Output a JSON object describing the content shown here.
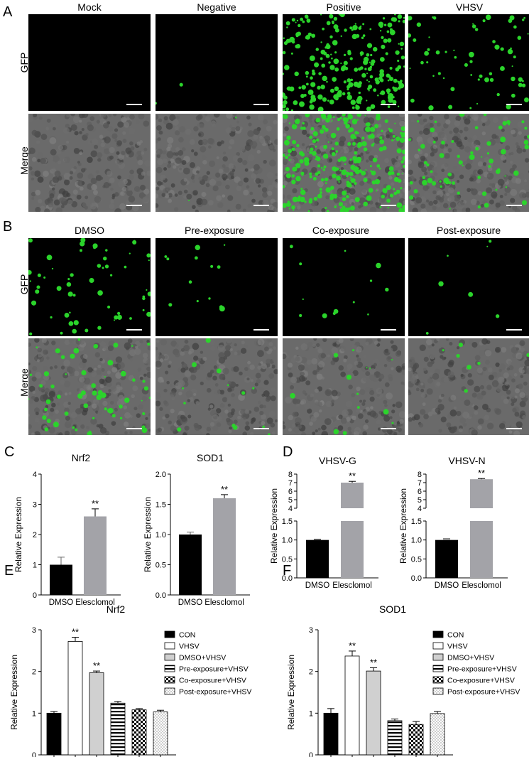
{
  "panels": {
    "A": {
      "label": "A",
      "columns": [
        "Mock",
        "Negative",
        "Positive",
        "VHSV"
      ],
      "rows": [
        "GFP",
        "Merge"
      ],
      "gfp_density": [
        0,
        0.01,
        1.0,
        0.25
      ]
    },
    "B": {
      "label": "B",
      "columns": [
        "DMSO",
        "Pre-exposure",
        "Co-exposure",
        "Post-exposure"
      ],
      "rows": [
        "GFP",
        "Merge"
      ],
      "gfp_density": [
        0.22,
        0.05,
        0.05,
        0.03
      ]
    },
    "C": {
      "label": "C"
    },
    "D": {
      "label": "D"
    },
    "E": {
      "label": "E"
    },
    "F": {
      "label": "F"
    }
  },
  "chart_data": [
    {
      "id": "C1",
      "type": "bar",
      "title": "Nrf2",
      "categories": [
        "DMSO",
        "Elesclomol"
      ],
      "values": [
        1.0,
        2.6
      ],
      "errors": [
        0.25,
        0.25
      ],
      "colors": [
        "#000000",
        "#a3a3a8"
      ],
      "significance": [
        "",
        "**"
      ],
      "ylabel": "Relative Expression",
      "ylim": [
        0,
        4
      ],
      "yticks": [
        "0",
        "1",
        "2",
        "3",
        "4"
      ]
    },
    {
      "id": "C2",
      "type": "bar",
      "title": "SOD1",
      "categories": [
        "DMSO",
        "Elesclomol"
      ],
      "values": [
        1.0,
        1.6
      ],
      "errors": [
        0.04,
        0.06
      ],
      "colors": [
        "#000000",
        "#a3a3a8"
      ],
      "significance": [
        "",
        "**"
      ],
      "ylabel": "Relative Expression",
      "ylim": [
        0,
        2
      ],
      "yticks": [
        "0.0",
        "0.5",
        "1.0",
        "1.5",
        "2.0"
      ]
    },
    {
      "id": "D1",
      "type": "bar",
      "title": "VHSV-G",
      "categories": [
        "DMSO",
        "Elesclomol"
      ],
      "values": [
        1.0,
        7.0
      ],
      "errors": [
        0.02,
        0.15
      ],
      "colors": [
        "#000000",
        "#a3a3a8"
      ],
      "significance": [
        "",
        "**"
      ],
      "ylabel": "Relative Expression",
      "axis_break": true,
      "lower_ylim": [
        0,
        1.5
      ],
      "lower_yticks": [
        "0.0",
        "0.5",
        "1.0",
        "1.5"
      ],
      "upper_ylim": [
        4,
        8
      ],
      "upper_yticks": [
        "4",
        "5",
        "6",
        "7",
        "8"
      ]
    },
    {
      "id": "D2",
      "type": "bar",
      "title": "VHSV-N",
      "categories": [
        "DMSO",
        "Elesclomol"
      ],
      "values": [
        1.0,
        7.4
      ],
      "errors": [
        0.03,
        0.08
      ],
      "colors": [
        "#000000",
        "#a3a3a8"
      ],
      "significance": [
        "",
        "**"
      ],
      "ylabel": "Relative Expression",
      "axis_break": true,
      "lower_ylim": [
        0,
        1.5
      ],
      "lower_yticks": [
        "0.0",
        "0.5",
        "1.0",
        "1.5"
      ],
      "upper_ylim": [
        4,
        8
      ],
      "upper_yticks": [
        "4",
        "5",
        "6",
        "7",
        "8"
      ]
    },
    {
      "id": "E",
      "type": "bar",
      "title": "Nrf2",
      "categories": [
        "CON",
        "VHSV",
        "DMSO+VHSV",
        "Pre-exposure+VHSV",
        "Co-exposure+VHSV",
        "Post-exposure+VHSV"
      ],
      "values": [
        1.0,
        2.72,
        1.97,
        1.24,
        1.08,
        1.03
      ],
      "errors": [
        0.04,
        0.1,
        0.04,
        0.04,
        0.03,
        0.04
      ],
      "significance": [
        "",
        "**",
        "**",
        "",
        "",
        ""
      ],
      "patterns": [
        "solid-black",
        "white",
        "light-gray",
        "horizontal-stripes",
        "checker",
        "dots"
      ],
      "ylabel": "Relative Expression",
      "ylim": [
        0,
        3
      ],
      "yticks": [
        "0",
        "1",
        "2",
        "3"
      ],
      "legend_position": "right"
    },
    {
      "id": "F",
      "type": "bar",
      "title": "SOD1",
      "categories": [
        "CON",
        "VHSV",
        "DMSO+VHSV",
        "Pre-exposure+VHSV",
        "Co-exposure+VHSV",
        "Post-exposure+VHSV"
      ],
      "values": [
        1.0,
        2.37,
        2.01,
        0.82,
        0.73,
        0.99
      ],
      "errors": [
        0.11,
        0.12,
        0.08,
        0.04,
        0.07,
        0.05
      ],
      "significance": [
        "",
        "**",
        "**",
        "",
        "",
        ""
      ],
      "patterns": [
        "solid-black",
        "white",
        "light-gray",
        "horizontal-stripes",
        "checker",
        "dots"
      ],
      "ylabel": "Relative Expression",
      "ylim": [
        0,
        3
      ],
      "yticks": [
        "0",
        "1",
        "2",
        "3"
      ],
      "legend_position": "right"
    }
  ]
}
